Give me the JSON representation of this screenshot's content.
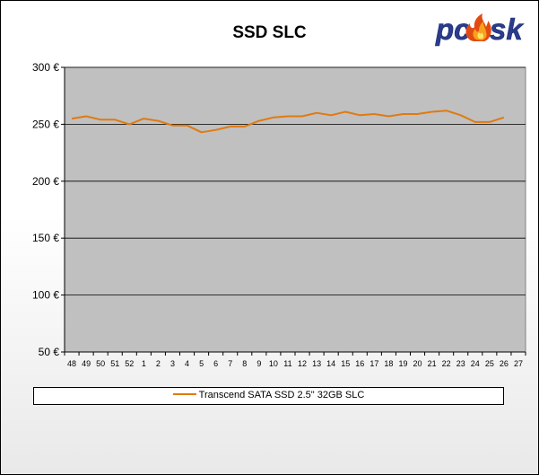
{
  "chart_data": {
    "type": "line",
    "title": "SSD SLC",
    "categories": [
      "48",
      "49",
      "50",
      "51",
      "52",
      "1",
      "2",
      "3",
      "4",
      "5",
      "6",
      "7",
      "8",
      "9",
      "10",
      "11",
      "12",
      "13",
      "14",
      "15",
      "16",
      "17",
      "18",
      "19",
      "20",
      "21",
      "22",
      "23",
      "24",
      "25",
      "26",
      "27"
    ],
    "y_tick_labels": [
      "50 €",
      "100 €",
      "150 €",
      "200 €",
      "250 €",
      "300 €"
    ],
    "y_ticks": [
      50,
      100,
      150,
      200,
      250,
      300
    ],
    "ylim": [
      50,
      300
    ],
    "grid": true,
    "legend_position": "bottom",
    "series": [
      {
        "name": "Transcend SATA SSD 2.5\" 32GB SLC",
        "color": "#e07a10",
        "values": [
          255,
          257,
          254,
          254,
          250,
          255,
          253,
          249,
          249,
          243,
          245,
          248,
          248,
          253,
          256,
          257,
          257,
          260,
          258,
          261,
          258,
          259,
          257,
          259,
          259,
          261,
          262,
          258,
          252,
          252,
          256,
          null
        ]
      }
    ]
  },
  "colors": {
    "plot_background": "#c0c0c0",
    "gridline": "#808080"
  },
  "logo": {
    "text_left": "pc",
    "text_right": "sk",
    "icon": "flame-icon"
  }
}
